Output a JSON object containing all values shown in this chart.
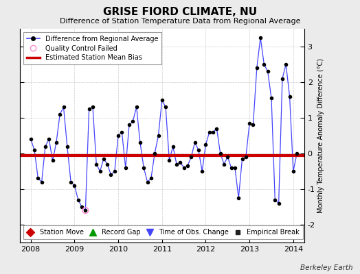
{
  "title": "GRISE FIORD CLIMATE, NU",
  "subtitle": "Difference of Station Temperature Data from Regional Average",
  "ylabel_right": "Monthly Temperature Anomaly Difference (°C)",
  "watermark": "Berkeley Earth",
  "background_color": "#ebebeb",
  "plot_bg_color": "#ffffff",
  "ylim": [
    -2.5,
    3.5
  ],
  "xlim": [
    2007.75,
    2014.25
  ],
  "yticks": [
    -2,
    -1,
    0,
    1,
    2,
    3
  ],
  "xticks": [
    2008,
    2009,
    2010,
    2011,
    2012,
    2013,
    2014
  ],
  "bias_value": -0.05,
  "line_color": "#4444ff",
  "bias_color": "#cc0000",
  "marker_color": "#000000",
  "qc_color": "#ff88cc",
  "data_x": [
    2008.0,
    2008.083,
    2008.167,
    2008.25,
    2008.333,
    2008.417,
    2008.5,
    2008.583,
    2008.667,
    2008.75,
    2008.833,
    2008.917,
    2009.0,
    2009.083,
    2009.167,
    2009.25,
    2009.333,
    2009.417,
    2009.5,
    2009.583,
    2009.667,
    2009.75,
    2009.833,
    2009.917,
    2010.0,
    2010.083,
    2010.167,
    2010.25,
    2010.333,
    2010.417,
    2010.5,
    2010.583,
    2010.667,
    2010.75,
    2010.833,
    2010.917,
    2011.0,
    2011.083,
    2011.167,
    2011.25,
    2011.333,
    2011.417,
    2011.5,
    2011.583,
    2011.667,
    2011.75,
    2011.833,
    2011.917,
    2012.0,
    2012.083,
    2012.167,
    2012.25,
    2012.333,
    2012.417,
    2012.5,
    2012.583,
    2012.667,
    2012.75,
    2012.833,
    2012.917,
    2013.0,
    2013.083,
    2013.167,
    2013.25,
    2013.333,
    2013.417,
    2013.5,
    2013.583,
    2013.667,
    2013.75,
    2013.833,
    2013.917,
    2014.0,
    2014.083
  ],
  "data_y": [
    0.4,
    0.1,
    -0.7,
    -0.8,
    0.2,
    0.4,
    -0.2,
    0.3,
    1.1,
    1.3,
    0.2,
    -0.8,
    -0.9,
    -1.3,
    -1.5,
    -1.6,
    1.25,
    1.3,
    -0.3,
    -0.5,
    -0.15,
    -0.3,
    -0.6,
    -0.5,
    0.5,
    0.6,
    -0.4,
    0.8,
    0.9,
    1.3,
    0.3,
    -0.4,
    -0.8,
    -0.7,
    0.0,
    0.5,
    1.5,
    1.3,
    -0.2,
    0.2,
    -0.3,
    -0.25,
    -0.4,
    -0.35,
    -0.1,
    0.3,
    0.1,
    -0.5,
    0.25,
    0.6,
    0.6,
    0.7,
    0.0,
    -0.3,
    -0.1,
    -0.4,
    -0.4,
    -1.25,
    -0.15,
    -0.1,
    0.85,
    0.8,
    2.4,
    3.25,
    2.5,
    2.3,
    1.55,
    -1.3,
    -1.4,
    2.1,
    2.5,
    1.6,
    -0.5,
    0.0
  ],
  "qc_fail_x": [
    2009.25
  ],
  "qc_fail_y": [
    -1.6
  ]
}
